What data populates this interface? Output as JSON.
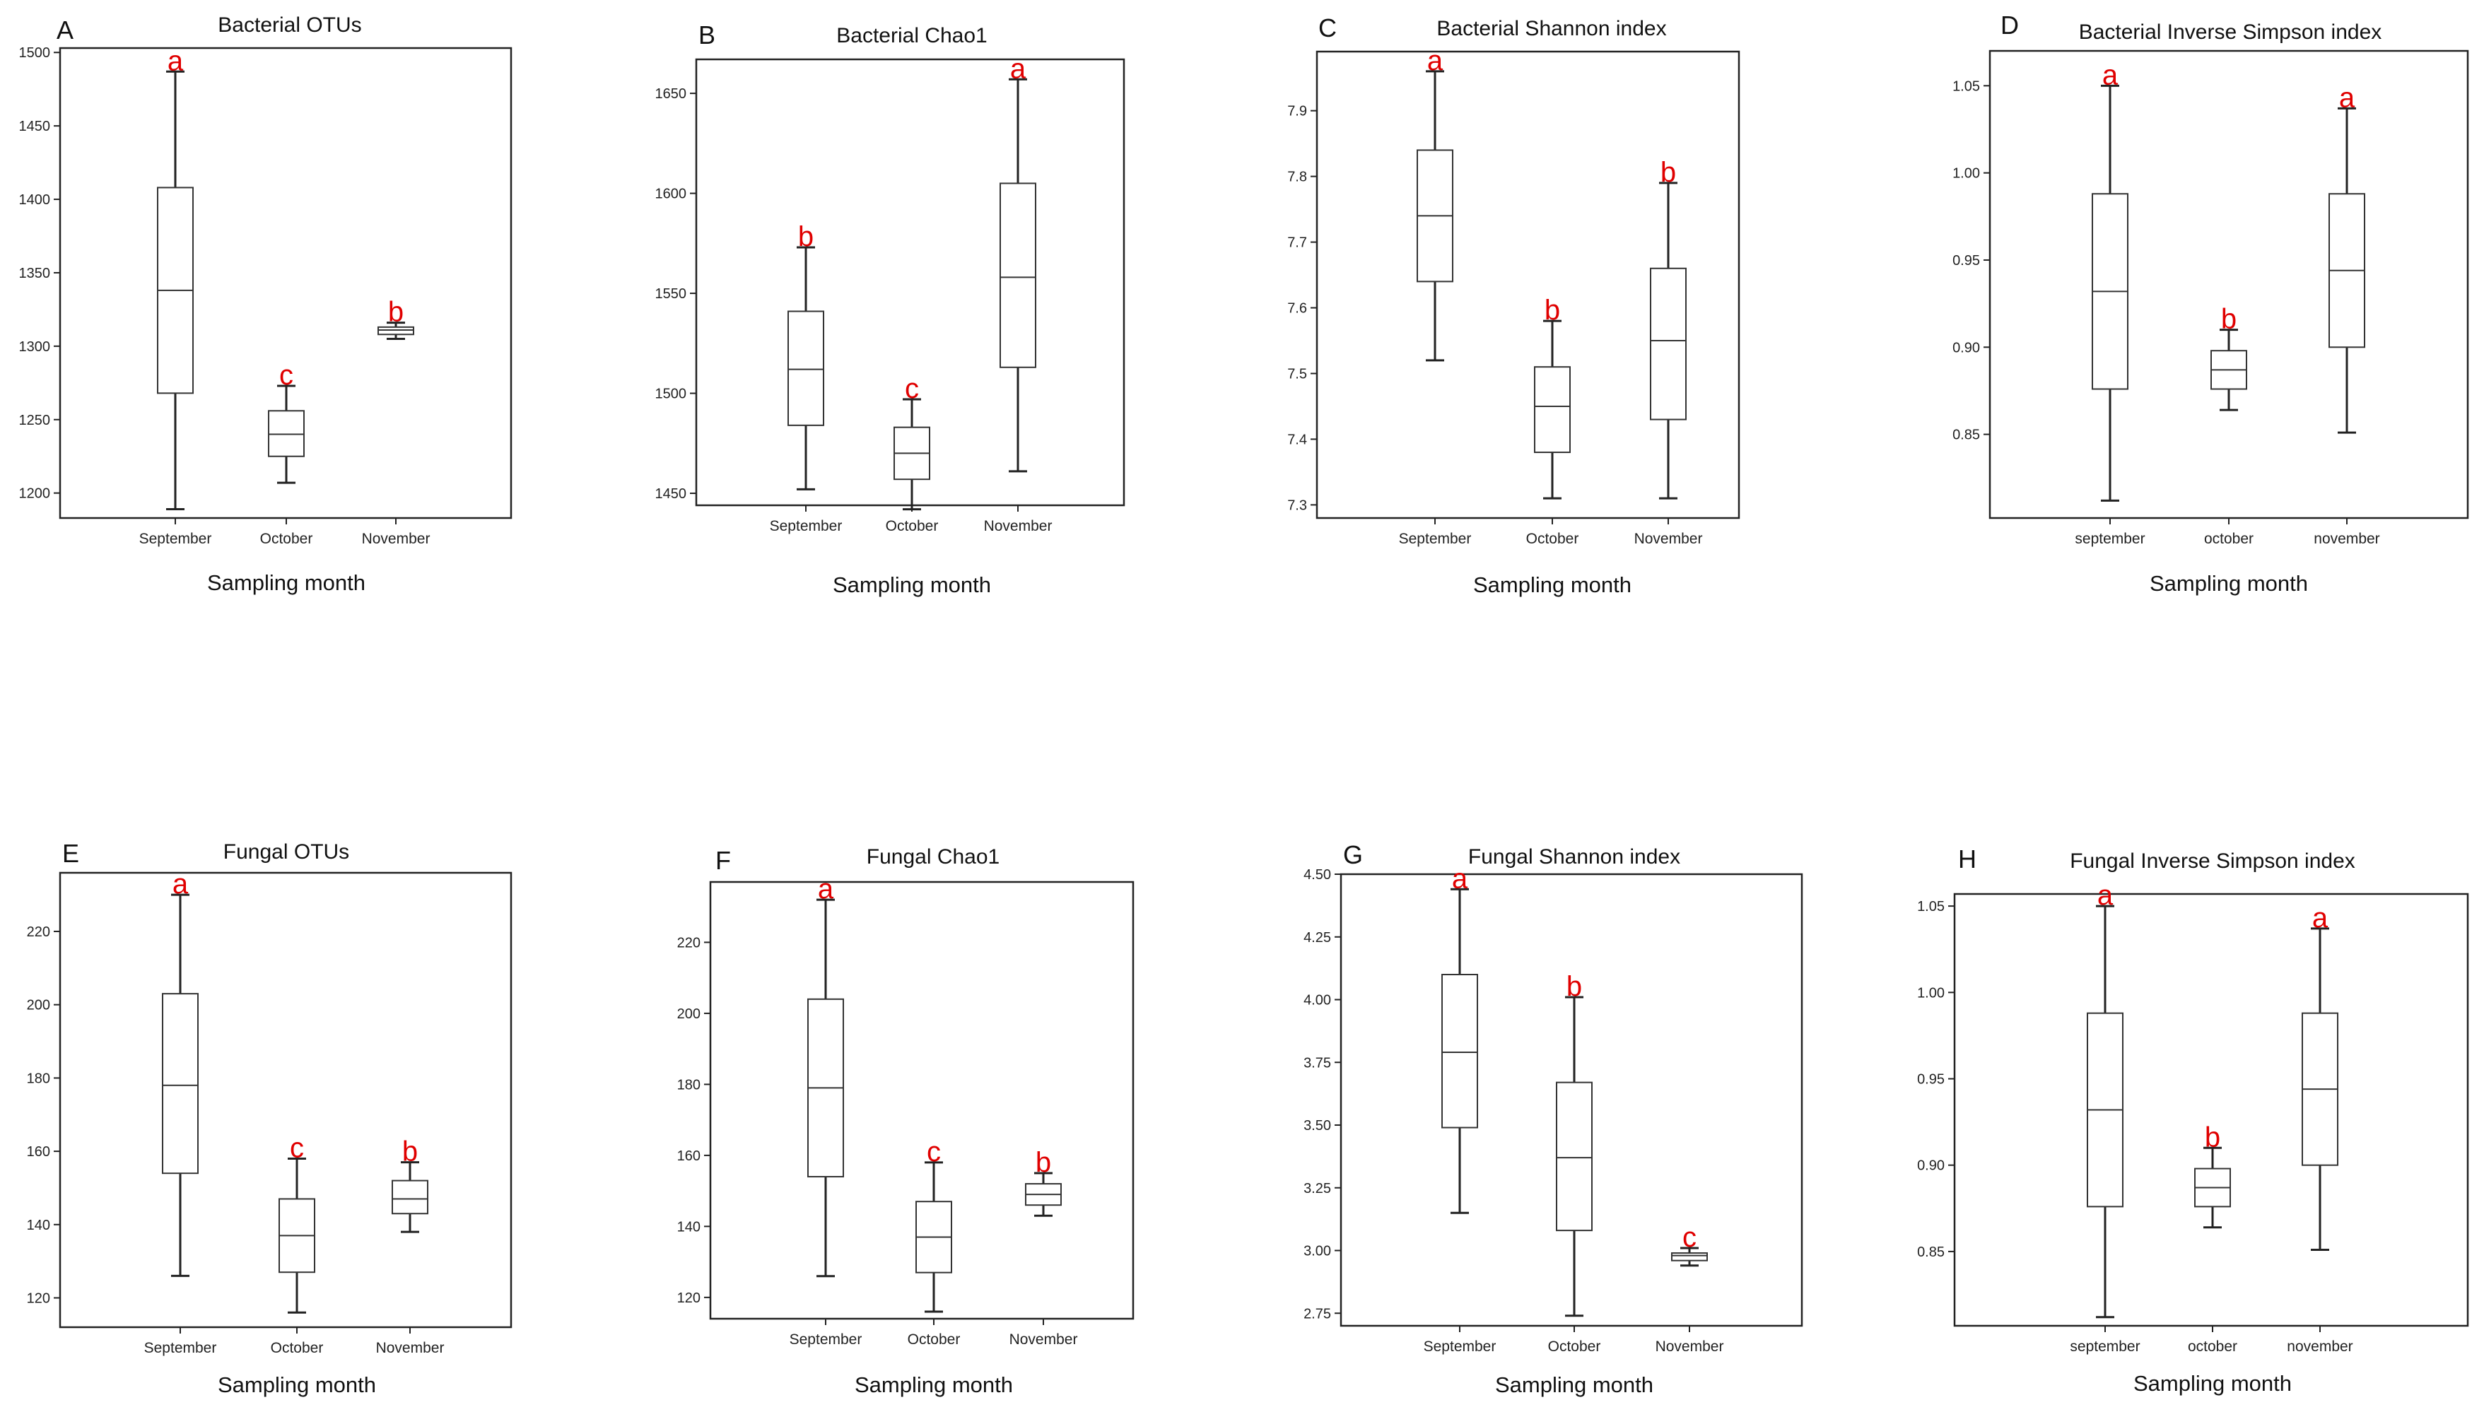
{
  "xlabel": "Sampling month",
  "chart_data": [
    {
      "letter": "A",
      "title": "Bacterial OTUs",
      "type": "box",
      "categories": [
        "September",
        "October",
        "November"
      ],
      "yticks": [
        1200,
        1250,
        1300,
        1350,
        1400,
        1450,
        1500
      ],
      "ylim": [
        1183,
        1503
      ],
      "boxes": [
        {
          "min": 1189,
          "q1": 1268,
          "median": 1338,
          "q3": 1408,
          "max": 1487,
          "sig": "a"
        },
        {
          "min": 1207,
          "q1": 1225,
          "median": 1240,
          "q3": 1256,
          "max": 1273,
          "sig": "c"
        },
        {
          "min": 1305,
          "q1": 1308,
          "median": 1311,
          "q3": 1313,
          "max": 1316,
          "sig": "b"
        }
      ]
    },
    {
      "letter": "B",
      "title": "Bacterial Chao1",
      "type": "box",
      "categories": [
        "September",
        "October",
        "November"
      ],
      "yticks": [
        1450,
        1500,
        1550,
        1600,
        1650
      ],
      "ylim": [
        1444,
        1667
      ],
      "boxes": [
        {
          "min": 1452,
          "q1": 1484,
          "median": 1512,
          "q3": 1541,
          "max": 1573,
          "sig": "b"
        },
        {
          "min": 1442,
          "q1": 1457,
          "median": 1470,
          "q3": 1483,
          "max": 1497,
          "sig": "c"
        },
        {
          "min": 1461,
          "q1": 1513,
          "median": 1558,
          "q3": 1605,
          "max": 1657,
          "sig": "a"
        }
      ]
    },
    {
      "letter": "C",
      "title": "Bacterial Shannon index",
      "type": "box",
      "categories": [
        "September",
        "October",
        "November"
      ],
      "yticks": [
        "7.3",
        "7.4",
        "7.5",
        "7.6",
        "7.7",
        "7.8",
        "7.9"
      ],
      "ylim": [
        7.28,
        7.99
      ],
      "boxes": [
        {
          "min": 7.52,
          "q1": 7.64,
          "median": 7.74,
          "q3": 7.84,
          "max": 7.96,
          "sig": "a"
        },
        {
          "min": 7.31,
          "q1": 7.38,
          "median": 7.45,
          "q3": 7.51,
          "max": 7.58,
          "sig": "b"
        },
        {
          "min": 7.31,
          "q1": 7.43,
          "median": 7.55,
          "q3": 7.66,
          "max": 7.79,
          "sig": "b"
        }
      ]
    },
    {
      "letter": "D",
      "title": "Bacterial Inverse Simpson index",
      "type": "box",
      "categories": [
        "september",
        "october",
        "november"
      ],
      "yticks": [
        "0.85",
        "0.90",
        "0.95",
        "1.00",
        "1.05"
      ],
      "ylim": [
        0.802,
        1.07
      ],
      "boxes": [
        {
          "min": 0.812,
          "q1": 0.876,
          "median": 0.932,
          "q3": 0.988,
          "max": 1.05,
          "sig": "a"
        },
        {
          "min": 0.864,
          "q1": 0.876,
          "median": 0.887,
          "q3": 0.898,
          "max": 0.91,
          "sig": "b"
        },
        {
          "min": 0.851,
          "q1": 0.9,
          "median": 0.944,
          "q3": 0.988,
          "max": 1.037,
          "sig": "a"
        }
      ]
    },
    {
      "letter": "E",
      "title": "Fungal OTUs",
      "type": "box",
      "categories": [
        "September",
        "October",
        "November"
      ],
      "yticks": [
        120,
        140,
        160,
        180,
        200,
        220
      ],
      "ylim": [
        112,
        236
      ],
      "boxes": [
        {
          "min": 126,
          "q1": 154,
          "median": 178,
          "q3": 203,
          "max": 230,
          "sig": "a"
        },
        {
          "min": 116,
          "q1": 127,
          "median": 137,
          "q3": 147,
          "max": 158,
          "sig": "c"
        },
        {
          "min": 138,
          "q1": 143,
          "median": 147,
          "q3": 152,
          "max": 157,
          "sig": "b"
        }
      ]
    },
    {
      "letter": "F",
      "title": "Fungal Chao1",
      "type": "box",
      "categories": [
        "September",
        "October",
        "November"
      ],
      "yticks": [
        120,
        140,
        160,
        180,
        200,
        220
      ],
      "ylim": [
        114,
        237
      ],
      "boxes": [
        {
          "min": 126,
          "q1": 154,
          "median": 179,
          "q3": 204,
          "max": 232,
          "sig": "a"
        },
        {
          "min": 116,
          "q1": 127,
          "median": 137,
          "q3": 147,
          "max": 158,
          "sig": "c"
        },
        {
          "min": 143,
          "q1": 146,
          "median": 149,
          "q3": 152,
          "max": 155,
          "sig": "b"
        }
      ]
    },
    {
      "letter": "G",
      "title": "Fungal Shannon index",
      "type": "box",
      "categories": [
        "September",
        "October",
        "November"
      ],
      "yticks": [
        "2.75",
        "3.00",
        "3.25",
        "3.50",
        "3.75",
        "4.00",
        "4.25",
        "4.50"
      ],
      "ylim": [
        2.7,
        4.5
      ],
      "boxes": [
        {
          "min": 3.15,
          "q1": 3.49,
          "median": 3.79,
          "q3": 4.1,
          "max": 4.44,
          "sig": "a"
        },
        {
          "min": 2.74,
          "q1": 3.08,
          "median": 3.37,
          "q3": 3.67,
          "max": 4.01,
          "sig": "b"
        },
        {
          "min": 2.94,
          "q1": 2.96,
          "median": 2.98,
          "q3": 2.99,
          "max": 3.01,
          "sig": "c"
        }
      ]
    },
    {
      "letter": "H",
      "title": "Fungal Inverse Simpson index",
      "type": "box",
      "categories": [
        "september",
        "october",
        "november"
      ],
      "yticks": [
        "0.85",
        "0.90",
        "0.95",
        "1.00",
        "1.05"
      ],
      "ylim": [
        0.807,
        1.057
      ],
      "boxes": [
        {
          "min": 0.812,
          "q1": 0.876,
          "median": 0.932,
          "q3": 0.988,
          "max": 1.05,
          "sig": "a"
        },
        {
          "min": 0.864,
          "q1": 0.876,
          "median": 0.887,
          "q3": 0.898,
          "max": 0.91,
          "sig": "b"
        },
        {
          "min": 0.851,
          "q1": 0.9,
          "median": 0.944,
          "q3": 0.988,
          "max": 1.037,
          "sig": "a"
        }
      ]
    }
  ]
}
